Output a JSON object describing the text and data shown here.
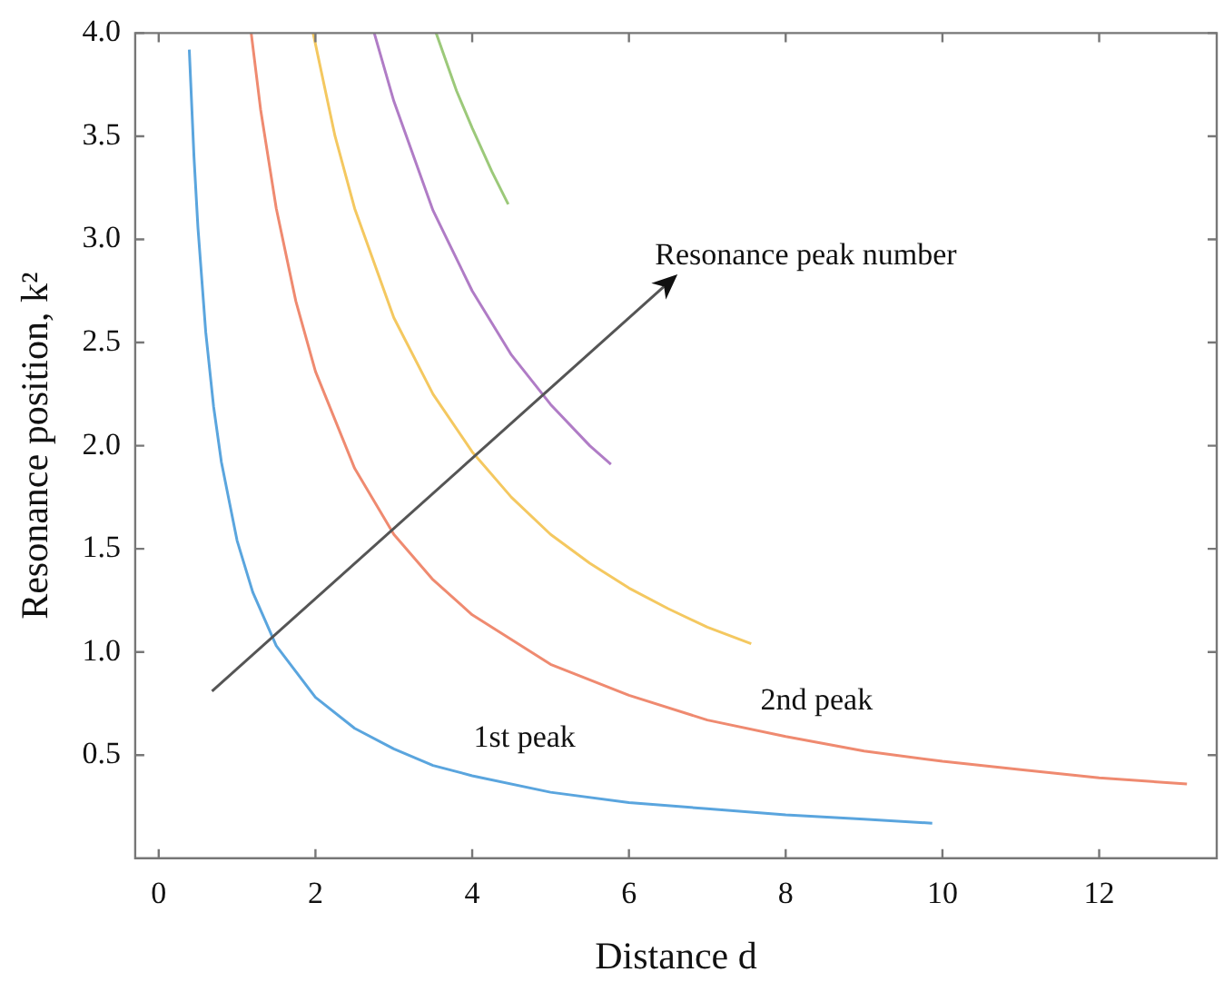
{
  "chart_data": {
    "type": "line",
    "xlabel": "Distance d",
    "ylabel": "Resonance position, k²",
    "xlim": [
      -0.3,
      13.5
    ],
    "ylim": [
      0,
      4.0
    ],
    "xticks": [
      0,
      2,
      4,
      6,
      8,
      10,
      12
    ],
    "yticks": [
      0.5,
      {
        "value": 1,
        "label": "1.0"
      },
      1.5,
      {
        "value": 2,
        "label": "2.0"
      },
      2.5,
      {
        "value": 3,
        "label": "3.0"
      },
      3.5,
      {
        "value": 4,
        "label": "4.0"
      }
    ],
    "grid": false,
    "line_style": "solid",
    "series": [
      {
        "color": "#5aa5de",
        "x": [
          0.39,
          0.45,
          0.5,
          0.6,
          0.7,
          0.8,
          1.0,
          1.2,
          1.5,
          2,
          2.5,
          3,
          3.5,
          4,
          5,
          6,
          7,
          8,
          9,
          9.87
        ],
        "values": [
          3.92,
          3.4,
          3.06,
          2.55,
          2.19,
          1.92,
          1.54,
          1.29,
          1.03,
          0.78,
          0.63,
          0.53,
          0.45,
          0.4,
          0.32,
          0.27,
          0.24,
          0.21,
          0.19,
          0.17
        ]
      },
      {
        "color": "#ef8a70",
        "x": [
          1.18,
          1.3,
          1.5,
          1.75,
          2,
          2.5,
          3,
          3.5,
          4,
          5,
          6,
          7,
          8,
          9,
          10,
          11,
          12,
          13.12
        ],
        "values": [
          4.0,
          3.63,
          3.15,
          2.7,
          2.36,
          1.89,
          1.57,
          1.35,
          1.18,
          0.94,
          0.79,
          0.67,
          0.59,
          0.52,
          0.47,
          0.43,
          0.39,
          0.36
        ]
      },
      {
        "color": "#f4c860",
        "x": [
          1.97,
          2.25,
          2.5,
          3,
          3.5,
          4,
          4.5,
          5,
          5.5,
          6,
          6.5,
          7,
          7.56
        ],
        "values": [
          4.0,
          3.5,
          3.15,
          2.62,
          2.25,
          1.97,
          1.75,
          1.57,
          1.43,
          1.31,
          1.21,
          1.12,
          1.04
        ]
      },
      {
        "color": "#b07cc6",
        "x": [
          2.75,
          3,
          3.5,
          4,
          4.5,
          5,
          5.5,
          5.77
        ],
        "values": [
          4.0,
          3.67,
          3.14,
          2.75,
          2.44,
          2.2,
          2.0,
          1.91
        ]
      },
      {
        "color": "#9cc97a",
        "x": [
          3.54,
          3.8,
          4,
          4.25,
          4.46
        ],
        "values": [
          4.0,
          3.72,
          3.54,
          3.33,
          3.17
        ]
      }
    ],
    "annotations": [
      "Resonance peak number",
      "2nd peak",
      "1st peak"
    ]
  }
}
